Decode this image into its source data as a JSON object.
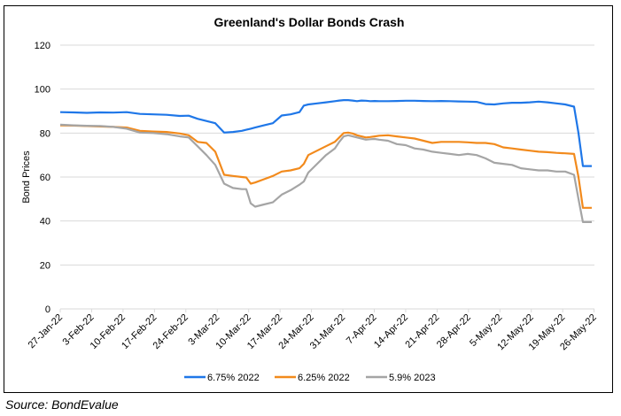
{
  "chart_data": {
    "type": "line",
    "title": "Greenland's Dollar Bonds Crash",
    "xlabel": "",
    "ylabel": "Bond Prices",
    "ylim": [
      0,
      120
    ],
    "yticks": [
      0,
      20,
      40,
      60,
      80,
      100,
      120
    ],
    "grid": true,
    "legend_position": "bottom",
    "x_tick_labels": [
      "27-Jan-22",
      "3-Feb-22",
      "10-Feb-22",
      "17-Feb-22",
      "24-Feb-22",
      "3-Mar-22",
      "10-Mar-22",
      "17-Mar-22",
      "24-Mar-22",
      "31-Mar-22",
      "7-Apr-22",
      "14-Apr-22",
      "21-Apr-22",
      "28-Apr-22",
      "5-May-22",
      "12-May-22",
      "19-May-22",
      "26-May-22"
    ],
    "x_day_offsets_note": "days since 27-Jan-22",
    "x": [
      0,
      3,
      6,
      9,
      12,
      15,
      18,
      21,
      24,
      27,
      29,
      31,
      33,
      35,
      37,
      39,
      41,
      42,
      43,
      44,
      46,
      48,
      50,
      52,
      54,
      55,
      56,
      58,
      60,
      62,
      63,
      64,
      65,
      66,
      67,
      68,
      69,
      70,
      71,
      72,
      74,
      76,
      78,
      80,
      82,
      84,
      86,
      88,
      90,
      92,
      94,
      96,
      98,
      100,
      102,
      104,
      106,
      108,
      110,
      112,
      114,
      116,
      117,
      118,
      119,
      120
    ],
    "series": [
      {
        "name": "6.75% 2022",
        "color": "#1f77e8",
        "values": [
          89.5,
          89.4,
          89.2,
          89.4,
          89.3,
          89.5,
          88.7,
          88.5,
          88.3,
          87.8,
          87.9,
          86.5,
          85.5,
          84.5,
          80.2,
          80.5,
          81.0,
          81.5,
          82.0,
          82.5,
          83.5,
          84.5,
          88.0,
          88.5,
          89.5,
          92.5,
          93.0,
          93.5,
          94.0,
          94.5,
          94.8,
          95.0,
          95.0,
          94.8,
          94.5,
          94.8,
          94.7,
          94.5,
          94.6,
          94.5,
          94.5,
          94.6,
          94.7,
          94.7,
          94.6,
          94.5,
          94.6,
          94.5,
          94.4,
          94.3,
          94.2,
          93.2,
          93.0,
          93.5,
          93.8,
          93.8,
          94.0,
          94.3,
          94.0,
          93.5,
          93.0,
          92.0,
          80.0,
          65.0,
          65.0,
          65.0
        ]
      },
      {
        "name": "6.25% 2022",
        "color": "#f28a1c",
        "values": [
          83.5,
          83.4,
          83.2,
          83.0,
          82.8,
          82.5,
          81.0,
          80.7,
          80.5,
          79.8,
          79.0,
          76.0,
          75.5,
          71.5,
          61.0,
          60.5,
          60.0,
          59.8,
          57.0,
          57.5,
          59.0,
          60.5,
          62.5,
          63.0,
          64.0,
          66.0,
          70.0,
          72.0,
          74.0,
          76.0,
          78.0,
          80.0,
          80.2,
          79.8,
          79.0,
          78.5,
          78.0,
          78.2,
          78.5,
          78.8,
          79.0,
          78.5,
          78.0,
          77.5,
          76.5,
          75.5,
          76.0,
          76.0,
          76.0,
          75.8,
          75.5,
          75.5,
          75.0,
          73.5,
          73.0,
          72.5,
          72.0,
          71.5,
          71.3,
          71.0,
          70.8,
          70.5,
          60.0,
          46.0,
          46.0,
          46.0
        ]
      },
      {
        "name": "5.9% 2023",
        "color": "#a5a5a5",
        "values": [
          83.8,
          83.5,
          83.3,
          83.2,
          82.8,
          82.0,
          80.2,
          80.0,
          79.5,
          78.5,
          78.0,
          74.0,
          70.0,
          65.5,
          57.0,
          55.0,
          54.5,
          54.5,
          48.0,
          46.5,
          47.5,
          48.5,
          52.0,
          54.0,
          56.5,
          58.0,
          62.0,
          66.0,
          70.0,
          73.0,
          76.0,
          78.5,
          79.0,
          78.5,
          78.0,
          77.5,
          77.0,
          77.2,
          77.3,
          77.0,
          76.5,
          75.0,
          74.5,
          73.0,
          72.5,
          71.5,
          71.0,
          70.5,
          70.0,
          70.5,
          70.0,
          68.5,
          66.5,
          66.0,
          65.5,
          64.0,
          63.5,
          63.0,
          63.0,
          62.5,
          62.5,
          61.0,
          50.0,
          39.5,
          39.5,
          39.5
        ]
      }
    ]
  },
  "source": "Source: BondEvalue"
}
